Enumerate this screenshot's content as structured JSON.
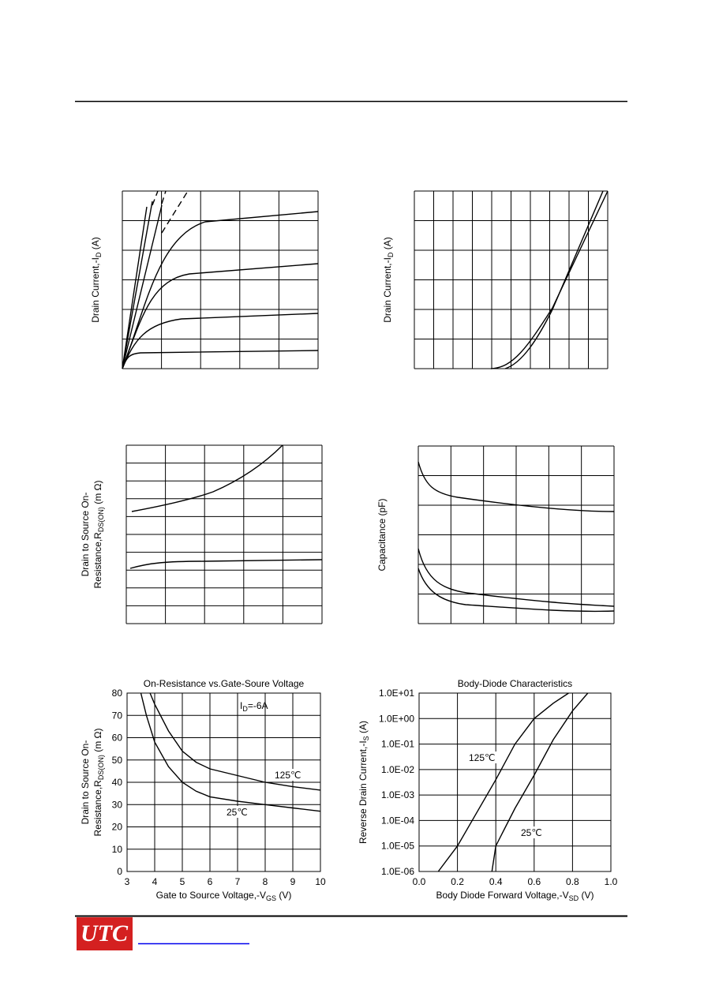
{
  "panels": [
    {
      "ylabel": [
        [
          "Drain Current,-I",
          "D",
          " (A)"
        ]
      ]
    },
    {
      "ylabel": [
        [
          "Drain Current,-I",
          "D",
          " (A)"
        ]
      ]
    },
    {
      "ylabel": [
        [
          "Drain to Source On-"
        ],
        [
          "Resistance,R",
          "DS(ON)",
          " (m Ω)"
        ]
      ]
    },
    {
      "ylabel": [
        [
          "Capacitance (pF)"
        ]
      ]
    }
  ],
  "logo": "UTC",
  "chart_data": [
    {
      "type": "line",
      "title": "On-Resistance vs.Gate-Soure Voltage",
      "xlabel": [
        [
          "Gate to Source Voltage,-V",
          "GS",
          " (V)"
        ]
      ],
      "ylabel": [
        [
          "Drain to Source On-"
        ],
        [
          "Resistance,R",
          "DS(ON)",
          " (m Ω)"
        ]
      ],
      "annotation": [
        "I",
        "D",
        "=-6A"
      ],
      "xlim": [
        3,
        10
      ],
      "xticks": [
        3,
        4,
        5,
        6,
        7,
        8,
        9,
        10
      ],
      "ylim": [
        0,
        80
      ],
      "yticks": [
        0,
        10,
        20,
        30,
        40,
        50,
        60,
        70,
        80
      ],
      "log_y": false,
      "grid": true,
      "series": [
        {
          "name": "125℃",
          "color": "#000000",
          "x": [
            3.83,
            4,
            4.5,
            5,
            5.5,
            6,
            7,
            8,
            9,
            10
          ],
          "values": [
            80,
            75,
            63,
            54,
            49,
            46,
            43,
            40,
            38,
            36.5
          ]
        },
        {
          "name": "25℃",
          "color": "#000000",
          "x": [
            3.5,
            3.7,
            4,
            4.5,
            5,
            5.5,
            6,
            7,
            8,
            9,
            10
          ],
          "values": [
            80,
            70,
            58,
            47,
            40,
            36,
            33.5,
            31.5,
            30,
            28.5,
            27
          ]
        }
      ]
    },
    {
      "type": "line",
      "title": "Body-Diode Characteristics",
      "xlabel": [
        [
          "Body Diode Forward Voltage,-V",
          "SD",
          " (V)"
        ]
      ],
      "ylabel": [
        [
          "Reverse Drain Current,-I",
          "S",
          " (A)"
        ]
      ],
      "xlim": [
        0,
        1
      ],
      "xticks": [
        {
          "value": 0,
          "label": "0.0"
        },
        0.2,
        0.4,
        0.6,
        0.8,
        {
          "value": 1,
          "label": "1.0"
        }
      ],
      "ylim": [
        1e-06,
        10
      ],
      "yticks": [
        {
          "value": 1e-06,
          "label": "1.0E-06"
        },
        {
          "value": 1e-05,
          "label": "1.0E-05"
        },
        {
          "value": 0.0001,
          "label": "1.0E-04"
        },
        {
          "value": 0.001,
          "label": "1.0E-03"
        },
        {
          "value": 0.01,
          "label": "1.0E-02"
        },
        {
          "value": 0.1,
          "label": "1.0E-01"
        },
        {
          "value": 1,
          "label": "1.0E+00"
        },
        {
          "value": 10,
          "label": "1.0E+01"
        }
      ],
      "log_y": true,
      "grid": true,
      "series": [
        {
          "name": "125℃",
          "color": "#000000",
          "x": [
            0.1,
            0.2,
            0.3,
            0.4,
            0.5,
            0.6,
            0.7,
            0.78
          ],
          "values": [
            1e-06,
            1e-05,
            0.0002,
            0.004,
            0.1,
            1,
            4,
            10
          ]
        },
        {
          "name": "25℃",
          "color": "#000000",
          "x": [
            0.38,
            0.4,
            0.5,
            0.6,
            0.7,
            0.8,
            0.88
          ],
          "values": [
            1e-06,
            1e-05,
            0.0003,
            0.006,
            0.15,
            2,
            10
          ]
        }
      ]
    }
  ]
}
